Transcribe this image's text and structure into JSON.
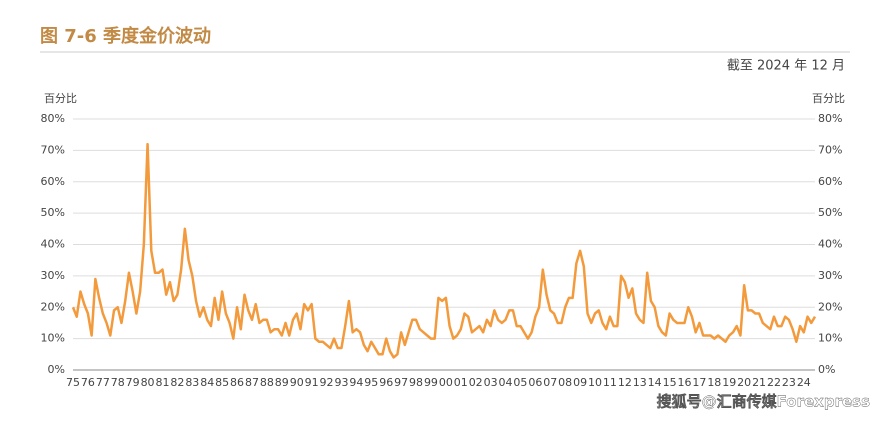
{
  "chart_data": {
    "type": "line",
    "title": "图 7-6  季度金价波动",
    "subtitle": "截至 2024 年 12 月",
    "y_label": "百分比",
    "y2_label": "百分比",
    "watermark": "搜狐号@汇商传媒Forexpress",
    "categories": [
      "75",
      null,
      null,
      null,
      "76",
      null,
      null,
      null,
      "77",
      null,
      null,
      null,
      "78",
      null,
      null,
      null,
      "79",
      null,
      null,
      null,
      "80",
      null,
      null,
      null,
      "81",
      null,
      null,
      null,
      "82",
      null,
      null,
      null,
      "83",
      null,
      null,
      null,
      "84",
      null,
      null,
      null,
      "85",
      null,
      null,
      null,
      "86",
      null,
      null,
      null,
      "87",
      null,
      null,
      null,
      "88",
      null,
      null,
      null,
      "89",
      null,
      null,
      null,
      "90",
      null,
      null,
      null,
      "91",
      null,
      null,
      null,
      "92",
      null,
      null,
      null,
      "93",
      null,
      null,
      null,
      "94",
      null,
      null,
      null,
      "95",
      null,
      null,
      null,
      "96",
      null,
      null,
      null,
      "97",
      null,
      null,
      null,
      "98",
      null,
      null,
      null,
      "99",
      null,
      null,
      null,
      "00",
      null,
      null,
      null,
      "01",
      null,
      null,
      null,
      "02",
      null,
      null,
      null,
      "03",
      null,
      null,
      null,
      "04",
      null,
      null,
      null,
      "05",
      null,
      null,
      null,
      "06",
      null,
      null,
      null,
      "07",
      null,
      null,
      null,
      "08",
      null,
      null,
      null,
      "09",
      null,
      null,
      null,
      "10",
      null,
      null,
      null,
      "11",
      null,
      null,
      null,
      "12",
      null,
      null,
      null,
      "13",
      null,
      null,
      null,
      "14",
      null,
      null,
      null,
      "15",
      null,
      null,
      null,
      "16",
      null,
      null,
      null,
      "17",
      null,
      null,
      null,
      "18",
      null,
      null,
      null,
      "19",
      null,
      null,
      null,
      "20",
      null,
      null,
      null,
      "21",
      null,
      null,
      null,
      "22",
      null,
      null,
      null,
      "23",
      null,
      null,
      null,
      "24",
      null,
      null,
      null
    ],
    "values": [
      20,
      17,
      25,
      21,
      18,
      11,
      29,
      23,
      18,
      15,
      11,
      19,
      20,
      15,
      22,
      31,
      25,
      18,
      25,
      40,
      72,
      38,
      31,
      31,
      32,
      24,
      28,
      22,
      24,
      32,
      45,
      35,
      30,
      22,
      17,
      20,
      16,
      14,
      23,
      16,
      25,
      18,
      15,
      10,
      20,
      13,
      24,
      19,
      16,
      21,
      15,
      16,
      16,
      12,
      13,
      13,
      11,
      15,
      11,
      16,
      18,
      13,
      21,
      19,
      21,
      10,
      9,
      9,
      8,
      7,
      10,
      7,
      7,
      14,
      22,
      12,
      13,
      12,
      8,
      6,
      9,
      7,
      5,
      5,
      10,
      6,
      4,
      5,
      12,
      8,
      12,
      16,
      16,
      13,
      12,
      11,
      10,
      10,
      23,
      22,
      23,
      14,
      10,
      11,
      13,
      18,
      17,
      12,
      13,
      14,
      12,
      16,
      14,
      19,
      16,
      15,
      16,
      19,
      19,
      14,
      14,
      12,
      10,
      12,
      17,
      20,
      32,
      24,
      19,
      18,
      15,
      15,
      20,
      23,
      23,
      34,
      38,
      33,
      18,
      15,
      18,
      19,
      15,
      13,
      17,
      14,
      14,
      30,
      28,
      23,
      26,
      18,
      16,
      15,
      31,
      22,
      20,
      14,
      12,
      11,
      18,
      16,
      15,
      15,
      15,
      20,
      17,
      12,
      15,
      11,
      11,
      11,
      10,
      11,
      10,
      9,
      11,
      12,
      14,
      11,
      27,
      19,
      19,
      18,
      18,
      15,
      14,
      13,
      17,
      14,
      14,
      17,
      16,
      13,
      9,
      14,
      12,
      17,
      15,
      17
    ],
    "color": "#f39a3c",
    "ylim": [
      0,
      80
    ],
    "yticks": [
      {
        "value": 0,
        "label": "0%"
      },
      {
        "value": 10,
        "label": "10%"
      },
      {
        "value": 20,
        "label": "20%"
      },
      {
        "value": 30,
        "label": "30%"
      },
      {
        "value": 40,
        "label": "40%"
      },
      {
        "value": 50,
        "label": "50%"
      },
      {
        "value": 60,
        "label": "60%"
      },
      {
        "value": 70,
        "label": "70%"
      },
      {
        "value": 80,
        "label": "80%"
      }
    ],
    "grid": true
  }
}
